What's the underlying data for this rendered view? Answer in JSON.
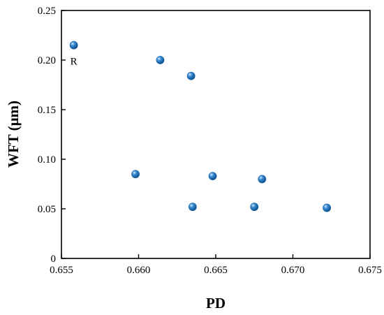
{
  "chart_data": {
    "type": "scatter",
    "xlabel": "PD",
    "ylabel": "WFT (μm)",
    "xlim": [
      0.655,
      0.675
    ],
    "ylim": [
      0,
      0.25
    ],
    "x_ticks": [
      "0.655",
      "0.660",
      "0.665",
      "0.670",
      "0.675"
    ],
    "y_ticks": [
      "0",
      "0.05",
      "0.10",
      "0.15",
      "0.20",
      "0.25"
    ],
    "grid": false,
    "marker_color": "#1565a8",
    "points": [
      {
        "x": 0.6558,
        "y": 0.215,
        "label": "R"
      },
      {
        "x": 0.6614,
        "y": 0.2
      },
      {
        "x": 0.6634,
        "y": 0.184
      },
      {
        "x": 0.6598,
        "y": 0.085
      },
      {
        "x": 0.6648,
        "y": 0.083
      },
      {
        "x": 0.668,
        "y": 0.08
      },
      {
        "x": 0.6635,
        "y": 0.052
      },
      {
        "x": 0.6675,
        "y": 0.052
      },
      {
        "x": 0.6722,
        "y": 0.051
      }
    ]
  }
}
